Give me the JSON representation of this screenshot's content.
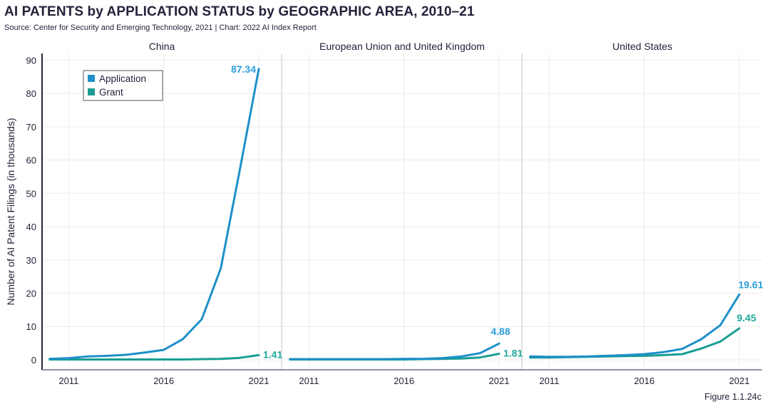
{
  "header": {
    "title": "AI PATENTS by APPLICATION STATUS by GEOGRAPHIC AREA, 2010–21",
    "source": "Source: Center for Security and Emerging Technology, 2021 | Chart: 2022 AI Index Report",
    "figure": "Figure 1.1.24c"
  },
  "colors": {
    "application": "#1e90c8",
    "grant": "#1a9d94",
    "application_label": "#2b9fd9",
    "grant_label": "#1fa89c",
    "grid": "#ebebeb",
    "divider": "#cfcfcf",
    "axis": "#2a2440"
  },
  "chart_data": {
    "type": "line",
    "title": "AI PATENTS by APPLICATION STATUS by GEOGRAPHIC AREA, 2010–21",
    "ylabel": "Number of AI Patent Filings (in thousands)",
    "xlabel": "",
    "ylim": [
      -3,
      92
    ],
    "yticks": [
      0,
      10,
      20,
      30,
      40,
      50,
      60,
      70,
      80,
      90
    ],
    "xlim": [
      2009.6,
      2022.2
    ],
    "xticks": [
      2011,
      2016,
      2021
    ],
    "x": [
      2010,
      2011,
      2012,
      2013,
      2014,
      2015,
      2016,
      2017,
      2018,
      2019,
      2020,
      2021
    ],
    "legend": {
      "position": "top-left",
      "entries": [
        "Application",
        "Grant"
      ]
    },
    "panels": [
      {
        "name": "China",
        "series": [
          {
            "name": "Application",
            "values": [
              0.3,
              0.5,
              1.0,
              1.2,
              1.5,
              2.2,
              3.0,
              6.2,
              12.2,
              27.5,
              57.0,
              87.34
            ]
          },
          {
            "name": "Grant",
            "values": [
              0.1,
              0.1,
              0.1,
              0.1,
              0.1,
              0.1,
              0.1,
              0.1,
              0.2,
              0.3,
              0.6,
              1.41
            ]
          }
        ],
        "end_labels": {
          "Application": "87.34",
          "Grant": "1.41"
        }
      },
      {
        "name": "European Union and United Kingdom",
        "series": [
          {
            "name": "Application",
            "values": [
              0.2,
              0.2,
              0.2,
              0.2,
              0.2,
              0.2,
              0.3,
              0.3,
              0.5,
              1.0,
              2.0,
              4.88
            ]
          },
          {
            "name": "Grant",
            "values": [
              0.1,
              0.1,
              0.1,
              0.1,
              0.1,
              0.1,
              0.1,
              0.2,
              0.3,
              0.4,
              0.7,
              1.81
            ]
          }
        ],
        "end_labels": {
          "Application": "4.88",
          "Grant": "1.81"
        }
      },
      {
        "name": "United States",
        "series": [
          {
            "name": "Application",
            "values": [
              1.0,
              0.9,
              0.9,
              1.0,
              1.2,
              1.4,
              1.7,
              2.3,
              3.3,
              6.2,
              10.4,
              19.61
            ]
          },
          {
            "name": "Grant",
            "values": [
              0.7,
              0.7,
              0.8,
              0.9,
              1.0,
              1.1,
              1.2,
              1.4,
              1.7,
              3.4,
              5.5,
              9.45
            ]
          }
        ],
        "end_labels": {
          "Application": "19.61",
          "Grant": "9.45"
        }
      }
    ]
  }
}
